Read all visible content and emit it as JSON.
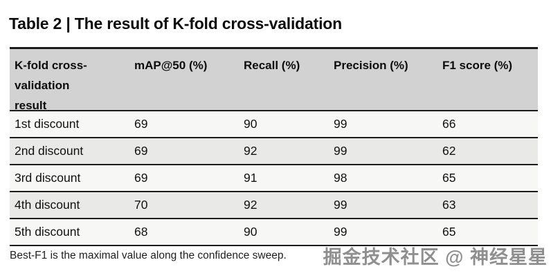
{
  "title": "Table 2 | The result of K-fold cross-validation",
  "table": {
    "columns": [
      "K-fold cross-validation result",
      "mAP@50 (%)",
      "Recall (%)",
      "Precision (%)",
      "F1 score (%)"
    ],
    "rows": [
      {
        "label": "1st discount",
        "map50": "69",
        "recall": "90",
        "precision": "99",
        "f1": "66"
      },
      {
        "label": "2nd discount",
        "map50": "69",
        "recall": "92",
        "precision": "99",
        "f1": "62"
      },
      {
        "label": "3rd discount",
        "map50": "69",
        "recall": "91",
        "precision": "98",
        "f1": "65"
      },
      {
        "label": "4th discount",
        "map50": "70",
        "recall": "92",
        "precision": "99",
        "f1": "63"
      },
      {
        "label": "5th discount",
        "map50": "68",
        "recall": "90",
        "precision": "99",
        "f1": "65"
      }
    ]
  },
  "footnote": "Best-F1 is the maximal value along the confidence sweep.",
  "watermark": "掘金技术社区 @ 神经星星",
  "colors": {
    "rule": "#1b1b1b",
    "header_bg": "#d2d2d2",
    "row_light": "#f7f7f6",
    "row_dark": "#e9e9e8",
    "watermark_gray": "#8f8f8f"
  }
}
